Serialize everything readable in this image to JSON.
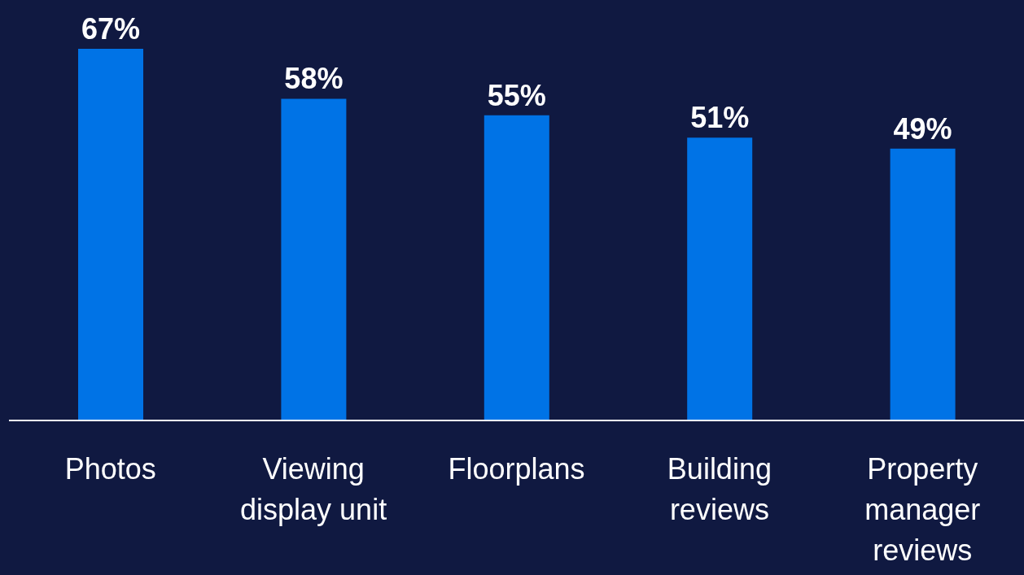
{
  "chart_data": {
    "type": "bar",
    "categories": [
      "Photos",
      "Viewing display unit",
      "Floorplans",
      "Building reviews",
      "Property manager reviews"
    ],
    "values": [
      67,
      58,
      55,
      51,
      49
    ],
    "color": "#0073e6",
    "value_labels": [
      "67%",
      "58%",
      "55%",
      "51%",
      "49%"
    ]
  }
}
